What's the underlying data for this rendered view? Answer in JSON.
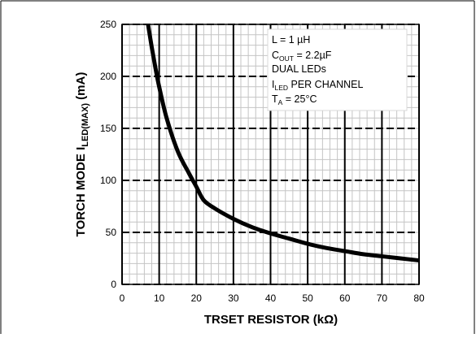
{
  "chart_data": {
    "type": "line",
    "title": "",
    "xlabel": "TRSET RESISTOR (kΩ)",
    "ylabel": "TORCH MODE I",
    "ylabel_sub": "LED(MAX)",
    "ylabel_unit": " (mA)",
    "xlim": [
      0,
      80
    ],
    "ylim": [
      0,
      250
    ],
    "x_ticks": [
      0,
      10,
      20,
      30,
      40,
      50,
      60,
      70,
      80
    ],
    "y_ticks": [
      0,
      50,
      100,
      150,
      200,
      250
    ],
    "grid": true,
    "series": [
      {
        "color": "#000000",
        "x": [
          7,
          8,
          9,
          10,
          12,
          15,
          18,
          20,
          22,
          25,
          30,
          35,
          40,
          45,
          50,
          55,
          60,
          65,
          70,
          75,
          80
        ],
        "y": [
          250,
          228,
          208,
          190,
          160,
          128,
          107,
          94,
          81,
          73,
          63,
          55,
          49,
          44,
          39,
          35,
          32,
          29,
          27,
          25,
          23
        ]
      }
    ],
    "annotation_lines": [
      {
        "main": "L = 1 µH"
      },
      {
        "main": "C",
        "sub": "OUT",
        "rest": " = 2.2µF"
      },
      {
        "main": "DUAL LEDs"
      },
      {
        "main": "I",
        "sub": "LED",
        "rest": " PER CHANNEL"
      },
      {
        "main": "T",
        "sub": "A",
        "rest": " = 25°C"
      }
    ]
  }
}
